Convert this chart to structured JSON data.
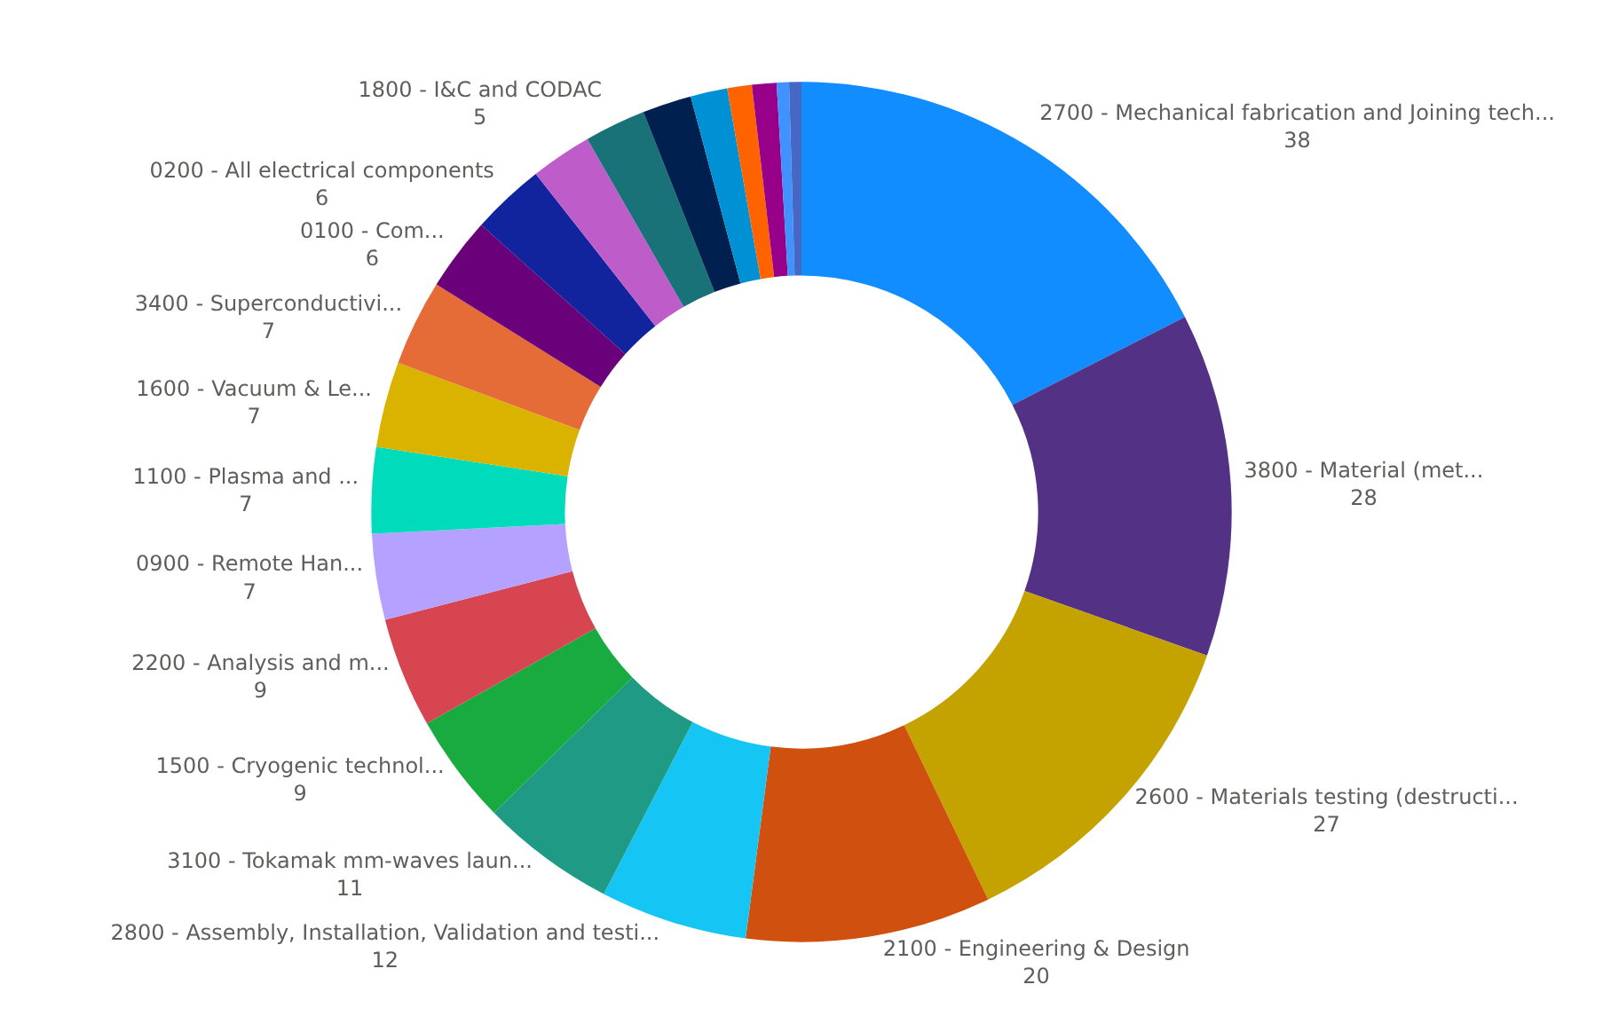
{
  "chart_data": {
    "type": "donut",
    "categories": [
      "2700 - Mechanical fabrication and Joining tech...",
      "3800 - Material (met...",
      "2600 - Materials testing (destructi...",
      "2100 - Engineering & Design",
      "2800 - Assembly, Installation, Validation and testi...",
      "3100 - Tokamak mm-waves laun...",
      "1500 - Cryogenic technol...",
      "2200 - Analysis and m...",
      "0900 - Remote Han...",
      "1100 - Plasma and ...",
      "1600 - Vacuum & Le...",
      "3400 - Superconductivi...",
      "0100 - Com...",
      "0200 - All electrical components",
      null,
      "1800 - I&C and CODAC",
      null,
      null,
      null,
      null,
      null,
      null
    ],
    "values": [
      38,
      28,
      27,
      20,
      12,
      11,
      9,
      9,
      7,
      7,
      7,
      7,
      6,
      6,
      5,
      5,
      4,
      3,
      2,
      2,
      1,
      1
    ],
    "value_labels": [
      "38",
      "28",
      "27",
      "20",
      "12",
      "11",
      "9",
      "9",
      "7",
      "7",
      "7",
      "7",
      "6",
      "6",
      null,
      "5",
      null,
      null,
      null,
      null,
      null,
      null
    ],
    "colors": [
      "#118dff",
      "#533285",
      "#c4a200",
      "#d0500f",
      "#15c6f4",
      "#1f9a85",
      "#1aab40",
      "#d64550",
      "#b5a1ff",
      "#00dbbc",
      "#d9b300",
      "#e66c37",
      "#6b007b",
      "#12239e",
      "#be5dc9",
      "#197278",
      "#00204f",
      "#0091d5",
      "#ff6300",
      "#99008a",
      "#4092ff",
      "#4668c5"
    ],
    "legend": false
  }
}
